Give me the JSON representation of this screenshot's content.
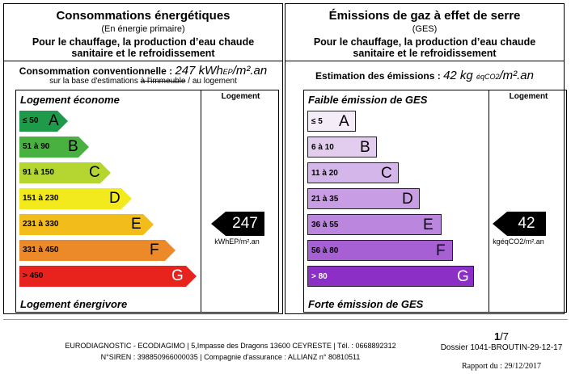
{
  "energy": {
    "title": "Consommations énergétiques",
    "subtitle": "(En énergie primaire)",
    "desc1": "Pour le chauffage, la production d’eau chaude",
    "desc2": "sanitaire et le refroidissement",
    "measure_label": "Consommation conventionnelle : ",
    "measure_value": "247 kWh",
    "measure_sub": "EP",
    "measure_unit": "/m².an",
    "basis_pre": "sur la base d'estimations ",
    "basis_strike": "à l'immeuble",
    "basis_post": " / au logement",
    "column_header": "Logement",
    "top_label": "Logement économe",
    "bottom_label": "Logement énergivore",
    "classes": [
      {
        "range": "≤ 50",
        "letter": "A",
        "color": "#1e9a4a"
      },
      {
        "range": "51 à 90",
        "letter": "B",
        "color": "#49b140"
      },
      {
        "range": "91 à 150",
        "letter": "C",
        "color": "#b5d531"
      },
      {
        "range": "151 à 230",
        "letter": "D",
        "color": "#f3ea1d"
      },
      {
        "range": "231 à 330",
        "letter": "E",
        "color": "#f2bc1a"
      },
      {
        "range": "331 à 450",
        "letter": "F",
        "color": "#ec8a2a"
      },
      {
        "range": "> 450",
        "letter": "G",
        "color": "#e8231d"
      }
    ],
    "marker_value": "247",
    "marker_unit": "kWhEP/m².an",
    "current_class": "E"
  },
  "ges": {
    "title": "Émissions de gaz à effet de serre",
    "subtitle": "(GES)",
    "desc1": "Pour le chauffage, la production d’eau chaude",
    "desc2": "sanitaire et le refroidissement",
    "measure_label": "Estimation des émissions : ",
    "measure_value": "42 kg ",
    "measure_sub": "éqCO2",
    "measure_unit": "/m².an",
    "column_header": "Logement",
    "top_label": "Faible émission de GES",
    "bottom_label": "Forte émission de GES",
    "classes": [
      {
        "range": "≤ 5",
        "letter": "A",
        "color": "#f4edf8"
      },
      {
        "range": "6 à 10",
        "letter": "B",
        "color": "#e2cdee"
      },
      {
        "range": "11 à 20",
        "letter": "C",
        "color": "#d5b6ea"
      },
      {
        "range": "21 à 35",
        "letter": "D",
        "color": "#c89de3"
      },
      {
        "range": "36 à 55",
        "letter": "E",
        "color": "#bb86dd"
      },
      {
        "range": "56 à 80",
        "letter": "F",
        "color": "#a760d4"
      },
      {
        "range": "> 80",
        "letter": "G",
        "color": "#8b2fc6"
      }
    ],
    "marker_value": "42",
    "marker_unit": "kgéqCO2/m².an",
    "current_class": "E"
  },
  "footer": {
    "line1": "EURODIAGNOSTIC - ECODIAGIMO | 5,Impasse des Dragons 13600 CEYRESTE | Tél. : 0668892312",
    "line2": "N°SIREN : 398850966000035 | Compagnie d'assurance : ALLIANZ n° 80810511",
    "page": "1",
    "page_total": "/7",
    "dossier": "Dossier 1041-BROUTIN-29-12-17",
    "rapport": "Rapport du : 29/12/2017"
  }
}
